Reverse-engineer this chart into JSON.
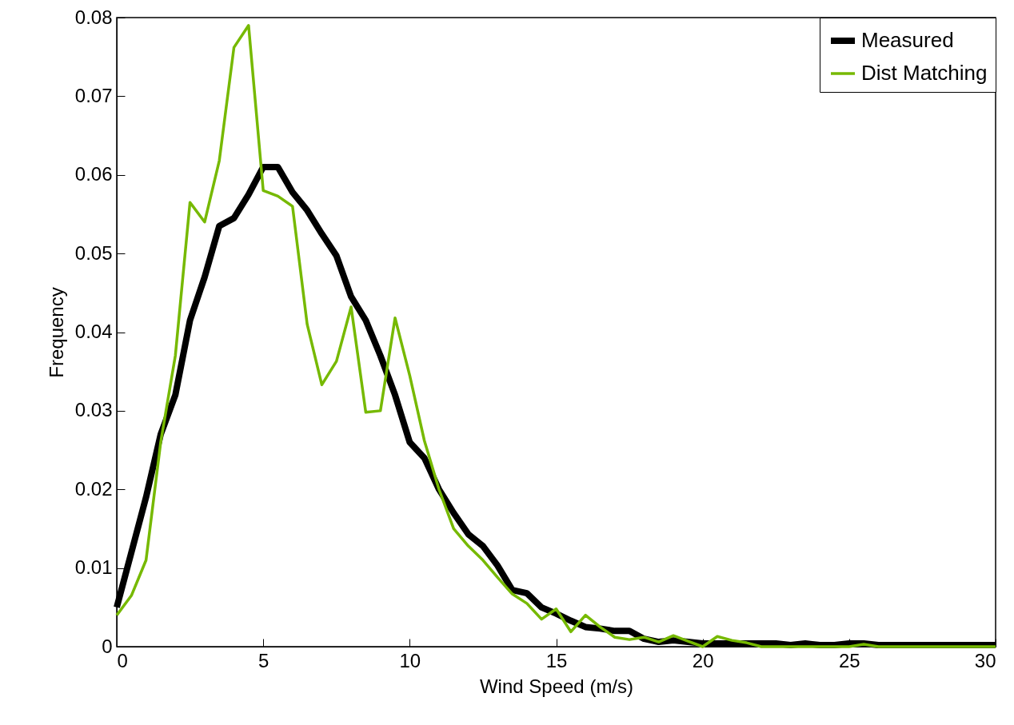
{
  "chart_data": {
    "type": "line",
    "xlabel": "Wind Speed (m/s)",
    "ylabel": "Frequency",
    "x": [
      0,
      0.5,
      1,
      1.5,
      2,
      2.5,
      3,
      3.5,
      4,
      4.5,
      5,
      5.5,
      6,
      6.5,
      7,
      7.5,
      8,
      8.5,
      9,
      9.5,
      10,
      10.5,
      11,
      11.5,
      12,
      12.5,
      13,
      13.5,
      14,
      14.5,
      15,
      15.5,
      16,
      16.5,
      17,
      17.5,
      18,
      18.5,
      19,
      19.5,
      20,
      20.5,
      21,
      21.5,
      22,
      22.5,
      23,
      23.5,
      24,
      24.5,
      25,
      25.5,
      26,
      26.5,
      27,
      27.5,
      28,
      28.5,
      29,
      29.5,
      30
    ],
    "series": [
      {
        "name": "Measured",
        "color": "#000000",
        "values": [
          0.005,
          0.012,
          0.019,
          0.027,
          0.032,
          0.0415,
          0.047,
          0.0535,
          0.0545,
          0.0575,
          0.061,
          0.061,
          0.0578,
          0.0555,
          0.0525,
          0.0497,
          0.0445,
          0.0415,
          0.037,
          0.032,
          0.026,
          0.024,
          0.02,
          0.017,
          0.0143,
          0.0128,
          0.0103,
          0.0072,
          0.0068,
          0.005,
          0.0042,
          0.0033,
          0.0025,
          0.0023,
          0.002,
          0.002,
          0.001,
          0.0006,
          0.0008,
          0.0006,
          0.0004,
          0.0004,
          0.0004,
          0.0004,
          0.0004,
          0.0004,
          0.0002,
          0.0004,
          0.0002,
          0.0002,
          0.0004,
          0.0004,
          0.0002,
          0.0002,
          0.0002,
          0.0002,
          0.0002,
          0.0002,
          0.0002,
          0.0002,
          0.0002
        ]
      },
      {
        "name": "Dist Matching",
        "color": "#76b900",
        "values": [
          0.004,
          0.0065,
          0.011,
          0.026,
          0.037,
          0.0565,
          0.054,
          0.0618,
          0.0762,
          0.079,
          0.058,
          0.0573,
          0.056,
          0.041,
          0.0333,
          0.0363,
          0.0432,
          0.0298,
          0.03,
          0.0418,
          0.0345,
          0.0262,
          0.02,
          0.015,
          0.0128,
          0.011,
          0.0088,
          0.0067,
          0.0055,
          0.0035,
          0.0048,
          0.0019,
          0.004,
          0.0025,
          0.0012,
          0.0009,
          0.0012,
          0.0006,
          0.0014,
          0.0007,
          0,
          0.0013,
          0.0008,
          0.0005,
          0,
          0,
          0,
          0,
          0,
          0,
          0,
          0.0003,
          0,
          0,
          0,
          0,
          0,
          0,
          0,
          0,
          0
        ]
      }
    ],
    "xlim": [
      0,
      30
    ],
    "xticks": [
      0,
      5,
      10,
      15,
      20,
      25,
      30
    ],
    "ylim": [
      0,
      0.08
    ],
    "yticks": [
      0,
      0.01,
      0.02,
      0.03,
      0.04,
      0.05,
      0.06,
      0.07,
      0.08
    ],
    "grid": false,
    "legend": "top right",
    "marker": "none",
    "line_style": "solid"
  }
}
